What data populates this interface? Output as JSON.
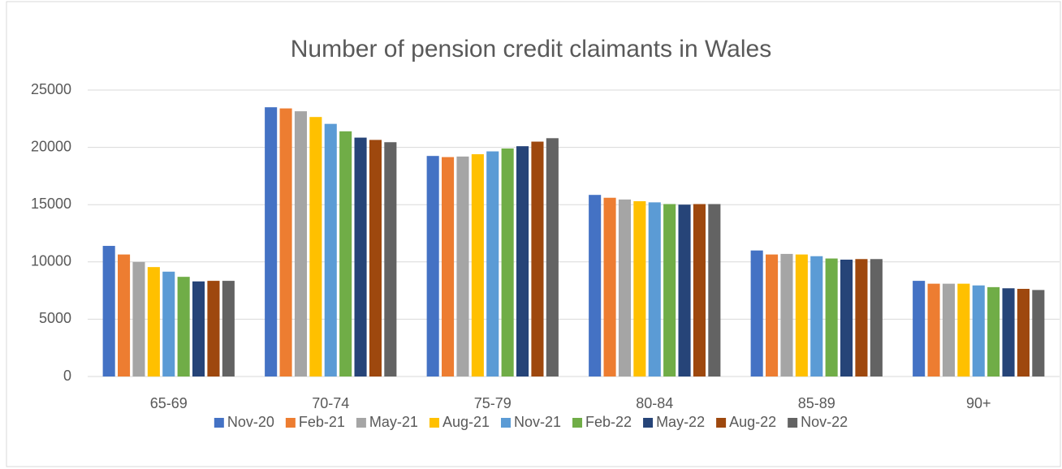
{
  "chart_data": {
    "type": "bar",
    "title": "Number of pension credit claimants in Wales",
    "categories": [
      "65-69",
      "70-74",
      "75-79",
      "80-84",
      "85-89",
      "90+"
    ],
    "series": [
      {
        "name": "Nov-20",
        "color": "#4472c4",
        "values": [
          11400,
          23500,
          19250,
          15850,
          11000,
          8350
        ]
      },
      {
        "name": "Feb-21",
        "color": "#ed7d31",
        "values": [
          10650,
          23400,
          19150,
          15600,
          10650,
          8100
        ]
      },
      {
        "name": "May-21",
        "color": "#a5a5a5",
        "values": [
          10000,
          23150,
          19200,
          15450,
          10700,
          8100
        ]
      },
      {
        "name": "Aug-21",
        "color": "#ffc000",
        "values": [
          9550,
          22650,
          19400,
          15300,
          10650,
          8100
        ]
      },
      {
        "name": "Nov-21",
        "color": "#5b9bd5",
        "values": [
          9150,
          22050,
          19650,
          15200,
          10500,
          7950
        ]
      },
      {
        "name": "Feb-22",
        "color": "#70ad47",
        "values": [
          8700,
          21400,
          19900,
          15050,
          10300,
          7800
        ]
      },
      {
        "name": "May-22",
        "color": "#264478",
        "values": [
          8300,
          20850,
          20100,
          15000,
          10200,
          7700
        ]
      },
      {
        "name": "Aug-22",
        "color": "#9e480e",
        "values": [
          8350,
          20650,
          20500,
          15050,
          10250,
          7650
        ]
      },
      {
        "name": "Nov-22",
        "color": "#636363",
        "values": [
          8350,
          20450,
          20800,
          15050,
          10250,
          7550
        ]
      }
    ],
    "ylim": [
      0,
      25000
    ],
    "yticks": [
      0,
      5000,
      10000,
      15000,
      20000,
      25000
    ],
    "grid": true,
    "legend": "bottom"
  }
}
